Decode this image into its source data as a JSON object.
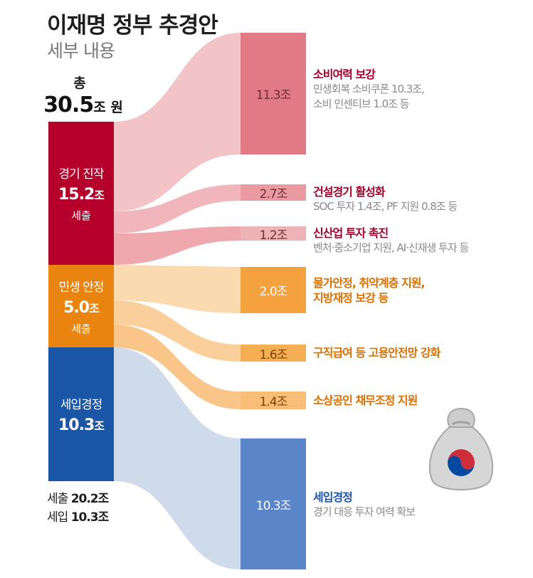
{
  "header": {
    "title": "이재명 정부 추경안",
    "subtitle": "세부 내용"
  },
  "total": {
    "label": "총",
    "value": "30.5",
    "unit": "조 원"
  },
  "sources": {
    "boost": {
      "name": "경기 진작",
      "amount": "15.2",
      "unit": "조",
      "note": "세출"
    },
    "live": {
      "name": "민생 안정",
      "amount": "5.0",
      "unit": "조",
      "note": "세출"
    },
    "revenue": {
      "name": "세입경정",
      "amount": "10.3",
      "unit": "조"
    }
  },
  "targets": [
    {
      "value": "11.3조",
      "heading": "소비여력 보강",
      "desc": [
        "민생회복 소비쿠폰 10.3조,",
        "소비 인센티브 1.0조 등"
      ]
    },
    {
      "value": "2.7조",
      "heading": "건설경기 활성화",
      "desc": [
        "SOC 투자 1.4조, PF 지원 0.8조 등"
      ]
    },
    {
      "value": "1.2조",
      "heading": "신산업 투자 촉진",
      "desc": [
        "벤처·중소기업 지원, AI·신재생 투자 등"
      ]
    },
    {
      "value": "2.0조",
      "heading": "물가안정, 취약계층 지원,",
      "heading2": "지방재정 보강 등"
    },
    {
      "value": "1.6조",
      "heading": "구직급여 등 고용안전망 강화"
    },
    {
      "value": "1.4조",
      "heading": "소상공인 채무조정 지원"
    },
    {
      "value": "10.3조",
      "heading": "세입경정",
      "desc": [
        "경기 대응 투자 여력 확보"
      ]
    }
  ],
  "summary": {
    "spend_label": "세출",
    "spend_value": "20.2조",
    "revenue_label": "세입",
    "revenue_value": "10.3조"
  },
  "colors": {
    "boost": "#b5002c",
    "live": "#e8840f",
    "revenue": "#1a56a5"
  },
  "icons": {
    "bag": "money-bag-icon",
    "emblem": "taegeuk-icon"
  }
}
